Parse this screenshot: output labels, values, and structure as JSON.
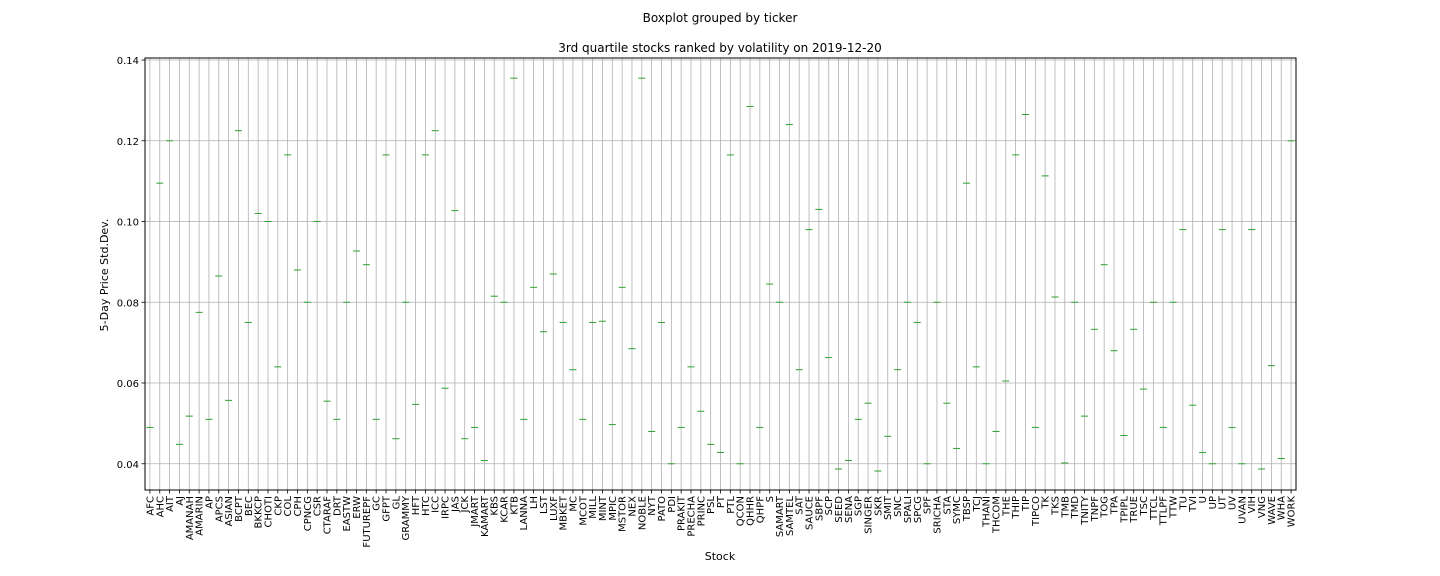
{
  "chart_data": {
    "type": "boxplot",
    "suptitle": "Boxplot grouped by ticker",
    "title": "3rd quartile stocks ranked by volatility on 2019-12-20",
    "xlabel": "Stock",
    "ylabel": "5-Day Price Std.Dev.",
    "ylim": [
      0.0335,
      0.1405
    ],
    "yticks": [
      0.04,
      0.06,
      0.08,
      0.1,
      0.12,
      0.14
    ],
    "ytick_labels": [
      "0.04",
      "0.06",
      "0.08",
      "0.10",
      "0.12",
      "0.14"
    ],
    "grid": true,
    "median_color": "#2ca02c",
    "categories": [
      "AFC",
      "AHC",
      "AIT",
      "AJ",
      "AMANAH",
      "AMARIN",
      "AP",
      "APCS",
      "ASIAN",
      "BCPT",
      "BEC",
      "BKKCP",
      "CHOTI",
      "CKP",
      "COL",
      "CPH",
      "CPNCG",
      "CSR",
      "CTARAF",
      "DRT",
      "EASTW",
      "ERW",
      "FUTUREPF",
      "GC",
      "GFPT",
      "GL",
      "GRAMMY",
      "HFT",
      "HTC",
      "ICC",
      "IRPC",
      "JAS",
      "JCK",
      "JMART",
      "KAMART",
      "KBS",
      "KCAR",
      "KTB",
      "LANNA",
      "LH",
      "LST",
      "LUXF",
      "MBKET",
      "MC",
      "MCOT",
      "MILL",
      "MINT",
      "MPIC",
      "MSTOR",
      "NEX",
      "NOBLE",
      "NYT",
      "PATO",
      "PDI",
      "PRAKIT",
      "PRECHA",
      "PRINC",
      "PSL",
      "PT",
      "PTL",
      "QCON",
      "QHHR",
      "QHPF",
      "S",
      "SAMART",
      "SAMTEL",
      "SAT",
      "SAUCE",
      "SBPF",
      "SCP",
      "SEED",
      "SENA",
      "SGP",
      "SINGER",
      "SKR",
      "SMIT",
      "SNC",
      "SPALI",
      "SPCG",
      "SPF",
      "SRICHA",
      "STA",
      "SYMC",
      "TBSP",
      "TCJ",
      "THANI",
      "THCOM",
      "THE",
      "THIP",
      "TIP",
      "TIPCO",
      "TK",
      "TKS",
      "TMB",
      "TMD",
      "TNITY",
      "TNPF",
      "TOG",
      "TPA",
      "TPIPL",
      "TRUE",
      "TSC",
      "TTCL",
      "TTLPF",
      "TTW",
      "TU",
      "TVI",
      "U",
      "UP",
      "UT",
      "UV",
      "UVAN",
      "VIH",
      "VNG",
      "WAVE",
      "WHA",
      "WORK"
    ],
    "values": [
      0.049,
      0.1095,
      0.12,
      0.0448,
      0.0518,
      0.0775,
      0.051,
      0.0865,
      0.0557,
      0.1225,
      0.075,
      0.102,
      0.1,
      0.064,
      0.1165,
      0.088,
      0.08,
      0.1,
      0.0555,
      0.051,
      0.08,
      0.0927,
      0.0893,
      0.051,
      0.1165,
      0.0462,
      0.08,
      0.0547,
      0.1165,
      0.1225,
      0.0587,
      0.1027,
      0.0462,
      0.049,
      0.0408,
      0.0815,
      0.08,
      0.1355,
      0.051,
      0.0837,
      0.0727,
      0.087,
      0.075,
      0.0633,
      0.051,
      0.075,
      0.0753,
      0.0497,
      0.0837,
      0.0685,
      0.1355,
      0.048,
      0.075,
      0.04,
      0.049,
      0.064,
      0.053,
      0.0448,
      0.0428,
      0.1165,
      0.04,
      0.1285,
      0.049,
      0.0845,
      0.08,
      0.124,
      0.0633,
      0.098,
      0.103,
      0.0663,
      0.0387,
      0.0408,
      0.051,
      0.055,
      0.0382,
      0.0468,
      0.0633,
      0.08,
      0.075,
      0.04,
      0.08,
      0.055,
      0.0438,
      0.1095,
      0.064,
      0.04,
      0.048,
      0.0605,
      0.1165,
      0.1265,
      0.049,
      0.1113,
      0.0813,
      0.0402,
      0.08,
      0.0518,
      0.0733,
      0.0893,
      0.068,
      0.047,
      0.0733,
      0.0585,
      0.08,
      0.049,
      0.08,
      0.098,
      0.0545,
      0.0428,
      0.04,
      0.098,
      0.049,
      0.04,
      0.098,
      0.0387,
      0.0643,
      0.0413,
      0.12
    ]
  }
}
